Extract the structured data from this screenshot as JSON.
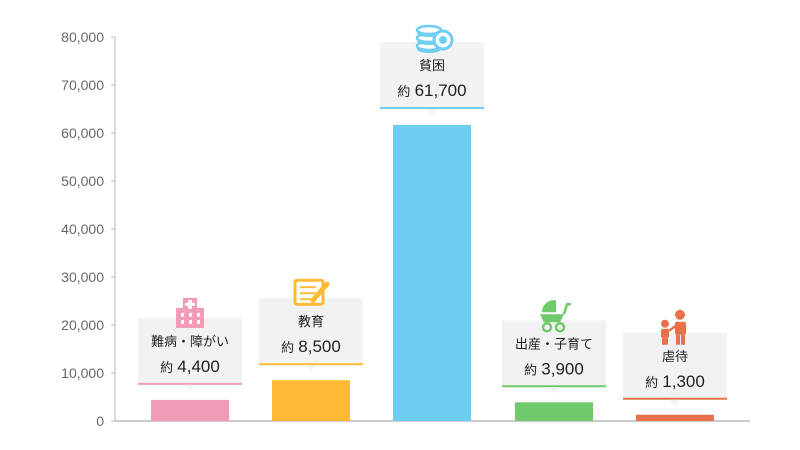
{
  "chart_data": {
    "type": "bar",
    "categories": [
      "難病・障がい",
      "教育",
      "貧困",
      "出産・子育て",
      "虐待"
    ],
    "values": [
      4400,
      8500,
      61700,
      3900,
      1300
    ],
    "value_labels": [
      "約 4,400",
      "約 8,500",
      "約 61,700",
      "約 3,900",
      "約 1,300"
    ],
    "value_prefix": "約",
    "value_numbers": [
      "4,400",
      "8,500",
      "61,700",
      "3,900",
      "1,300"
    ],
    "colors": [
      "#f19bb4",
      "#fdbb35",
      "#6fcdf1",
      "#70c96b",
      "#e8704b"
    ],
    "icons": [
      "hospital-icon",
      "notebook-pencil-icon",
      "coins-icon",
      "stroller-icon",
      "parent-child-icon"
    ],
    "yticks": [
      "0",
      "10,000",
      "20,000",
      "30,000",
      "40,000",
      "50,000",
      "60,000",
      "70,000",
      "80,000"
    ],
    "ylim": [
      0,
      80000
    ],
    "grid": false,
    "legend": "none",
    "title": "",
    "xlabel": "",
    "ylabel": ""
  }
}
